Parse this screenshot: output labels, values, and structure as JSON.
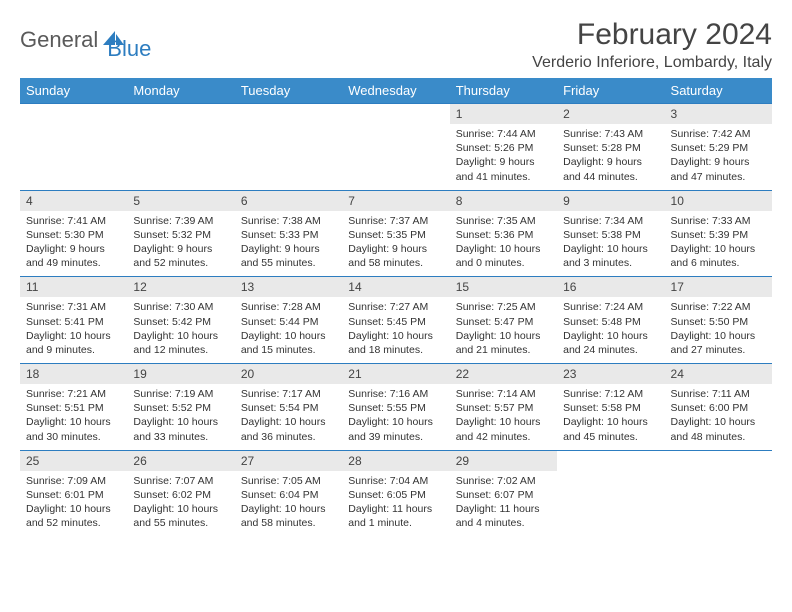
{
  "logo": {
    "part1": "General",
    "part2": "Blue"
  },
  "title": "February 2024",
  "location": "Verderio Inferiore, Lombardy, Italy",
  "colors": {
    "header_bg": "#3a8bc9",
    "header_text": "#ffffff",
    "daynum_bg": "#e9e9e9",
    "border": "#2d7dc0",
    "logo_blue": "#2d7dc0",
    "logo_gray": "#5a5a5a",
    "text": "#333333"
  },
  "weekdays": [
    "Sunday",
    "Monday",
    "Tuesday",
    "Wednesday",
    "Thursday",
    "Friday",
    "Saturday"
  ],
  "weeks": [
    [
      null,
      null,
      null,
      null,
      {
        "n": "1",
        "sr": "Sunrise: 7:44 AM",
        "ss": "Sunset: 5:26 PM",
        "d1": "Daylight: 9 hours",
        "d2": "and 41 minutes."
      },
      {
        "n": "2",
        "sr": "Sunrise: 7:43 AM",
        "ss": "Sunset: 5:28 PM",
        "d1": "Daylight: 9 hours",
        "d2": "and 44 minutes."
      },
      {
        "n": "3",
        "sr": "Sunrise: 7:42 AM",
        "ss": "Sunset: 5:29 PM",
        "d1": "Daylight: 9 hours",
        "d2": "and 47 minutes."
      }
    ],
    [
      {
        "n": "4",
        "sr": "Sunrise: 7:41 AM",
        "ss": "Sunset: 5:30 PM",
        "d1": "Daylight: 9 hours",
        "d2": "and 49 minutes."
      },
      {
        "n": "5",
        "sr": "Sunrise: 7:39 AM",
        "ss": "Sunset: 5:32 PM",
        "d1": "Daylight: 9 hours",
        "d2": "and 52 minutes."
      },
      {
        "n": "6",
        "sr": "Sunrise: 7:38 AM",
        "ss": "Sunset: 5:33 PM",
        "d1": "Daylight: 9 hours",
        "d2": "and 55 minutes."
      },
      {
        "n": "7",
        "sr": "Sunrise: 7:37 AM",
        "ss": "Sunset: 5:35 PM",
        "d1": "Daylight: 9 hours",
        "d2": "and 58 minutes."
      },
      {
        "n": "8",
        "sr": "Sunrise: 7:35 AM",
        "ss": "Sunset: 5:36 PM",
        "d1": "Daylight: 10 hours",
        "d2": "and 0 minutes."
      },
      {
        "n": "9",
        "sr": "Sunrise: 7:34 AM",
        "ss": "Sunset: 5:38 PM",
        "d1": "Daylight: 10 hours",
        "d2": "and 3 minutes."
      },
      {
        "n": "10",
        "sr": "Sunrise: 7:33 AM",
        "ss": "Sunset: 5:39 PM",
        "d1": "Daylight: 10 hours",
        "d2": "and 6 minutes."
      }
    ],
    [
      {
        "n": "11",
        "sr": "Sunrise: 7:31 AM",
        "ss": "Sunset: 5:41 PM",
        "d1": "Daylight: 10 hours",
        "d2": "and 9 minutes."
      },
      {
        "n": "12",
        "sr": "Sunrise: 7:30 AM",
        "ss": "Sunset: 5:42 PM",
        "d1": "Daylight: 10 hours",
        "d2": "and 12 minutes."
      },
      {
        "n": "13",
        "sr": "Sunrise: 7:28 AM",
        "ss": "Sunset: 5:44 PM",
        "d1": "Daylight: 10 hours",
        "d2": "and 15 minutes."
      },
      {
        "n": "14",
        "sr": "Sunrise: 7:27 AM",
        "ss": "Sunset: 5:45 PM",
        "d1": "Daylight: 10 hours",
        "d2": "and 18 minutes."
      },
      {
        "n": "15",
        "sr": "Sunrise: 7:25 AM",
        "ss": "Sunset: 5:47 PM",
        "d1": "Daylight: 10 hours",
        "d2": "and 21 minutes."
      },
      {
        "n": "16",
        "sr": "Sunrise: 7:24 AM",
        "ss": "Sunset: 5:48 PM",
        "d1": "Daylight: 10 hours",
        "d2": "and 24 minutes."
      },
      {
        "n": "17",
        "sr": "Sunrise: 7:22 AM",
        "ss": "Sunset: 5:50 PM",
        "d1": "Daylight: 10 hours",
        "d2": "and 27 minutes."
      }
    ],
    [
      {
        "n": "18",
        "sr": "Sunrise: 7:21 AM",
        "ss": "Sunset: 5:51 PM",
        "d1": "Daylight: 10 hours",
        "d2": "and 30 minutes."
      },
      {
        "n": "19",
        "sr": "Sunrise: 7:19 AM",
        "ss": "Sunset: 5:52 PM",
        "d1": "Daylight: 10 hours",
        "d2": "and 33 minutes."
      },
      {
        "n": "20",
        "sr": "Sunrise: 7:17 AM",
        "ss": "Sunset: 5:54 PM",
        "d1": "Daylight: 10 hours",
        "d2": "and 36 minutes."
      },
      {
        "n": "21",
        "sr": "Sunrise: 7:16 AM",
        "ss": "Sunset: 5:55 PM",
        "d1": "Daylight: 10 hours",
        "d2": "and 39 minutes."
      },
      {
        "n": "22",
        "sr": "Sunrise: 7:14 AM",
        "ss": "Sunset: 5:57 PM",
        "d1": "Daylight: 10 hours",
        "d2": "and 42 minutes."
      },
      {
        "n": "23",
        "sr": "Sunrise: 7:12 AM",
        "ss": "Sunset: 5:58 PM",
        "d1": "Daylight: 10 hours",
        "d2": "and 45 minutes."
      },
      {
        "n": "24",
        "sr": "Sunrise: 7:11 AM",
        "ss": "Sunset: 6:00 PM",
        "d1": "Daylight: 10 hours",
        "d2": "and 48 minutes."
      }
    ],
    [
      {
        "n": "25",
        "sr": "Sunrise: 7:09 AM",
        "ss": "Sunset: 6:01 PM",
        "d1": "Daylight: 10 hours",
        "d2": "and 52 minutes."
      },
      {
        "n": "26",
        "sr": "Sunrise: 7:07 AM",
        "ss": "Sunset: 6:02 PM",
        "d1": "Daylight: 10 hours",
        "d2": "and 55 minutes."
      },
      {
        "n": "27",
        "sr": "Sunrise: 7:05 AM",
        "ss": "Sunset: 6:04 PM",
        "d1": "Daylight: 10 hours",
        "d2": "and 58 minutes."
      },
      {
        "n": "28",
        "sr": "Sunrise: 7:04 AM",
        "ss": "Sunset: 6:05 PM",
        "d1": "Daylight: 11 hours",
        "d2": "and 1 minute."
      },
      {
        "n": "29",
        "sr": "Sunrise: 7:02 AM",
        "ss": "Sunset: 6:07 PM",
        "d1": "Daylight: 11 hours",
        "d2": "and 4 minutes."
      },
      null,
      null
    ]
  ]
}
